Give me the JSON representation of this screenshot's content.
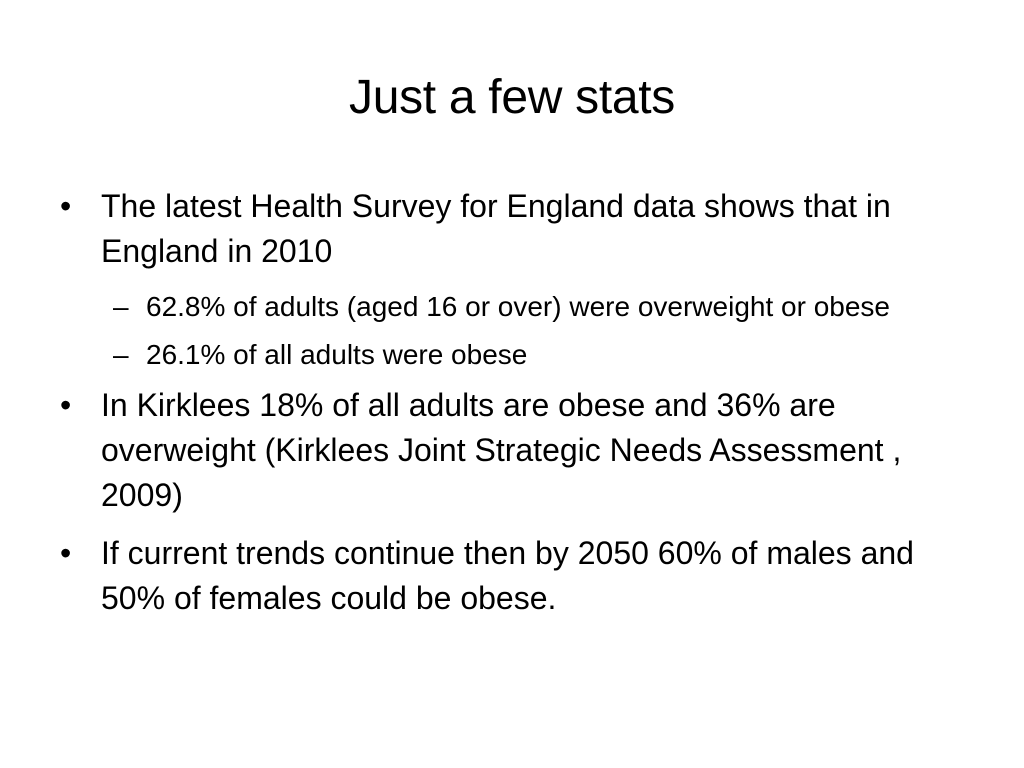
{
  "slide": {
    "title": "Just a few stats",
    "bullet_marker": "•",
    "sub_marker": "–",
    "bullets": [
      {
        "text": "The latest Health Survey for England data shows that in England in 2010",
        "subs": [
          "62.8% of adults (aged 16 or over) were overweight or obese",
          "26.1% of all adults were obese"
        ]
      },
      {
        "text": "In Kirklees 18% of all adults are obese and 36% are overweight (Kirklees Joint Strategic Needs Assessment , 2009)"
      },
      {
        "text": "If current trends continue then by 2050 60% of males and 50% of females could be obese."
      }
    ]
  }
}
